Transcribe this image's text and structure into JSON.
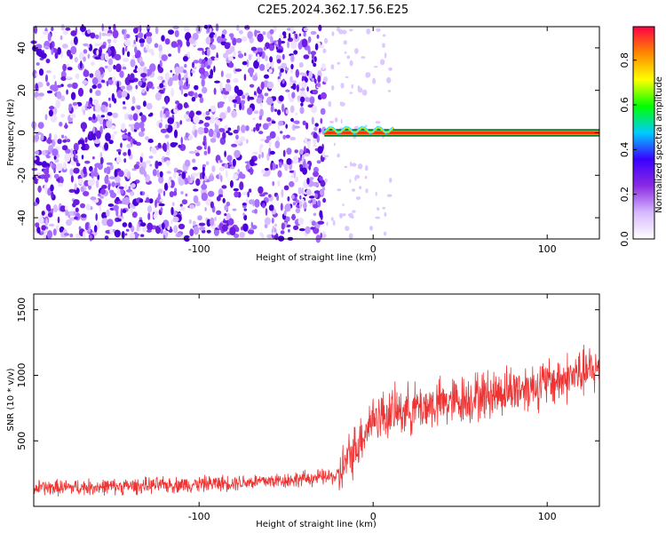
{
  "title": "C2E5.2024.362.17.56.E25",
  "chart_data": [
    {
      "type": "heatmap",
      "xlabel": "Height of straight line (km)",
      "ylabel": "Frequency (Hz)",
      "xlim": [
        -195,
        130
      ],
      "ylim": [
        -50,
        50
      ],
      "xticks": [
        "-100",
        "0",
        "100"
      ],
      "xtick_values": [
        -100,
        0,
        100
      ],
      "yticks": [
        "-40",
        "-20",
        "0",
        "20",
        "40"
      ],
      "ytick_values": [
        -40,
        -20,
        0,
        20,
        40
      ],
      "noise_region_x": [
        -195,
        -28
      ],
      "tone_line": {
        "y": 0,
        "x_start": -28,
        "x_end": 130
      },
      "colorbar": {
        "label": "Normalized spectral amplitude",
        "range": [
          0,
          0.95
        ],
        "ticks": [
          "0.0",
          "0.2",
          "0.4",
          "0.6",
          "0.8"
        ],
        "tick_values": [
          0.0,
          0.2,
          0.4,
          0.6,
          0.8
        ],
        "colors": [
          "#ffffff",
          "#d6b8ff",
          "#8a2be2",
          "#3a00ff",
          "#00ccff",
          "#00ff00",
          "#ffff00",
          "#ff8800",
          "#ff0044"
        ]
      }
    },
    {
      "type": "line",
      "xlabel": "Height of straight line (km)",
      "ylabel": "SNR (10 * v/v)",
      "xlim": [
        -195,
        130
      ],
      "ylim": [
        0,
        1620
      ],
      "xticks": [
        "-100",
        "0",
        "100"
      ],
      "xtick_values": [
        -100,
        0,
        100
      ],
      "yticks": [
        "500",
        "1000",
        "1500"
      ],
      "ytick_values": [
        500,
        1000,
        1500
      ],
      "series": [
        {
          "color": "#ee3333",
          "x": [
            -195,
            -150,
            -100,
            -50,
            -20,
            0,
            20,
            50,
            80,
            100,
            130
          ],
          "y": [
            140,
            150,
            170,
            200,
            230,
            680,
            740,
            810,
            890,
            940,
            1050
          ]
        }
      ]
    }
  ]
}
